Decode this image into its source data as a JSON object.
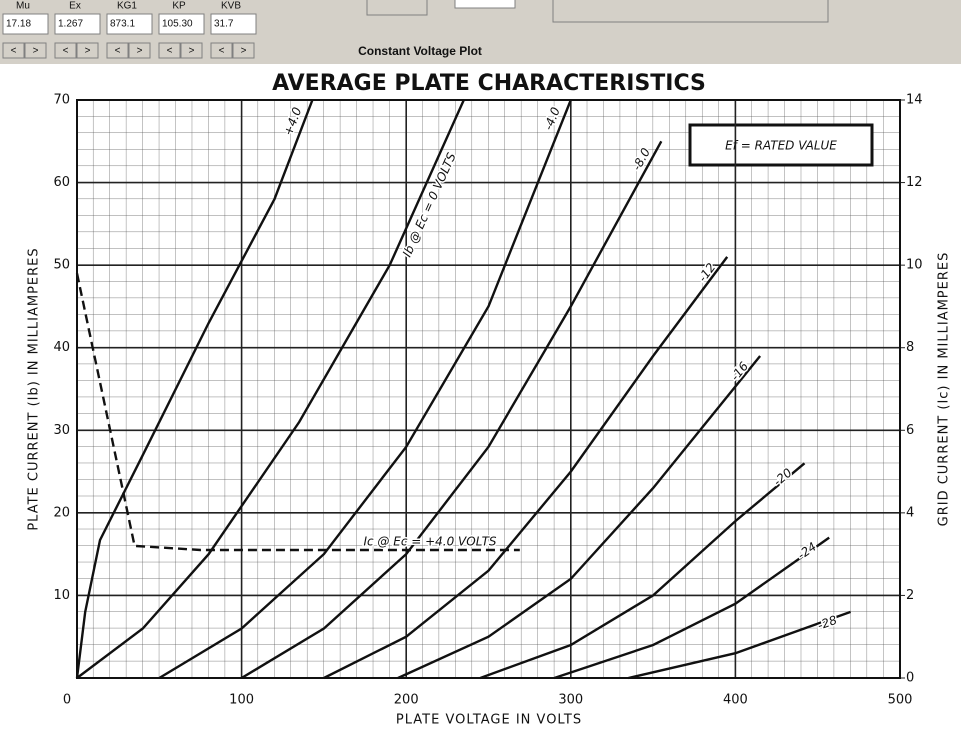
{
  "controls": {
    "params": [
      {
        "label": "Mu",
        "value": "17.18"
      },
      {
        "label": "Ex",
        "value": "1.267"
      },
      {
        "label": "KG1",
        "value": "873.1"
      },
      {
        "label": "KP",
        "value": "105.30"
      },
      {
        "label": "KVB",
        "value": "31.7"
      }
    ],
    "buttons": [
      "<",
      ">"
    ],
    "plot_label": "Constant Voltage Plot"
  },
  "chart_data": {
    "type": "line",
    "title": "AVERAGE PLATE CHARACTERISTICS",
    "x_label": "PLATE VOLTAGE IN VOLTS",
    "y_label": "PLATE CURRENT (Ib) IN MILLIAMPERES",
    "y2_label": "GRID CURRENT (Ic) IN MILLIAMPERES",
    "annotation": "Ef = RATED VALUE",
    "xlim": [
      0,
      500
    ],
    "xticks": [
      0,
      100,
      200,
      300,
      400,
      500
    ],
    "ylim": [
      0,
      70
    ],
    "yticks": [
      10,
      20,
      30,
      40,
      50,
      60,
      70
    ],
    "y2lim": [
      0,
      14
    ],
    "y2ticks": [
      0,
      2,
      4,
      6,
      8,
      10,
      12,
      14
    ],
    "grid": true,
    "series": [
      {
        "name": "+4.0",
        "color": "#111111",
        "x": [
          0,
          5,
          14,
          40,
          80,
          120,
          143
        ],
        "values": [
          0,
          8,
          16.7,
          27,
          43,
          58,
          70
        ]
      },
      {
        "name": "Ib @ Ec = 0 VOLTS",
        "color": "#111111",
        "x": [
          0,
          40,
          80,
          135,
          190,
          235
        ],
        "values": [
          0,
          6,
          15,
          31,
          50,
          70
        ]
      },
      {
        "name": "-4.0",
        "color": "#111111",
        "x": [
          50,
          100,
          150,
          200,
          250,
          300
        ],
        "values": [
          0,
          6,
          15,
          28,
          45,
          70
        ]
      },
      {
        "name": "-8.0",
        "color": "#111111",
        "x": [
          100,
          150,
          200,
          250,
          300,
          355
        ],
        "values": [
          0,
          6,
          15,
          28,
          45,
          65
        ]
      },
      {
        "name": "-12",
        "color": "#111111",
        "x": [
          150,
          200,
          250,
          300,
          350,
          395
        ],
        "values": [
          0,
          5,
          13,
          25,
          39,
          51
        ]
      },
      {
        "name": "-16",
        "color": "#111111",
        "x": [
          195,
          250,
          300,
          350,
          415
        ],
        "values": [
          0,
          5,
          12,
          23,
          39
        ]
      },
      {
        "name": "-20",
        "color": "#111111",
        "x": [
          245,
          300,
          350,
          400,
          442
        ],
        "values": [
          0,
          4,
          10,
          19,
          26
        ]
      },
      {
        "name": "-24",
        "color": "#111111",
        "x": [
          290,
          350,
          400,
          457
        ],
        "values": [
          0,
          4,
          9,
          17
        ]
      },
      {
        "name": "-28",
        "color": "#111111",
        "x": [
          335,
          400,
          470
        ],
        "values": [
          0,
          3,
          8
        ]
      },
      {
        "name": "Ic @ Ec = +4.0 VOLTS",
        "color": "#111111",
        "dashed": true,
        "axis": "y2",
        "x": [
          0,
          35,
          75,
          269
        ],
        "values": [
          9.8,
          3.2,
          3.1,
          3.1
        ]
      }
    ]
  }
}
